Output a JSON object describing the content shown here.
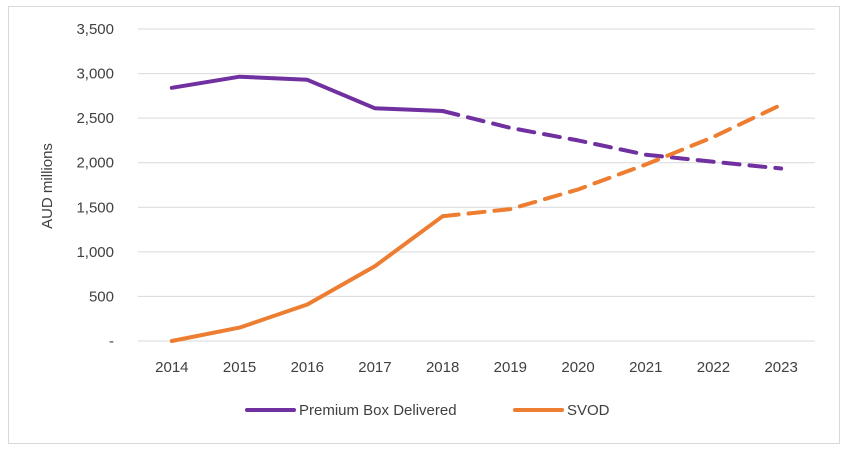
{
  "chart_data": {
    "type": "line",
    "title": "",
    "xlabel": "",
    "ylabel": "AUD millions",
    "categories": [
      "2014",
      "2015",
      "2016",
      "2017",
      "2018",
      "2019",
      "2020",
      "2021",
      "2022",
      "2023"
    ],
    "ylim": [
      0,
      3500
    ],
    "yticks": [
      "-",
      "500",
      "1,000",
      "1,500",
      "2,000",
      "2,500",
      "3,000",
      "3,500"
    ],
    "grid": true,
    "legend_position": "bottom",
    "forecast_from": "2018",
    "series": [
      {
        "name": "Premium Box Delivered",
        "color": "#7030a0",
        "values": [
          2840,
          2965,
          2930,
          2610,
          2580,
          2390,
          2250,
          2090,
          2010,
          1935
        ]
      },
      {
        "name": "SVOD",
        "color": "#ed7d31",
        "values": [
          0,
          150,
          410,
          840,
          1400,
          1480,
          1700,
          1980,
          2290,
          2650
        ]
      }
    ]
  }
}
